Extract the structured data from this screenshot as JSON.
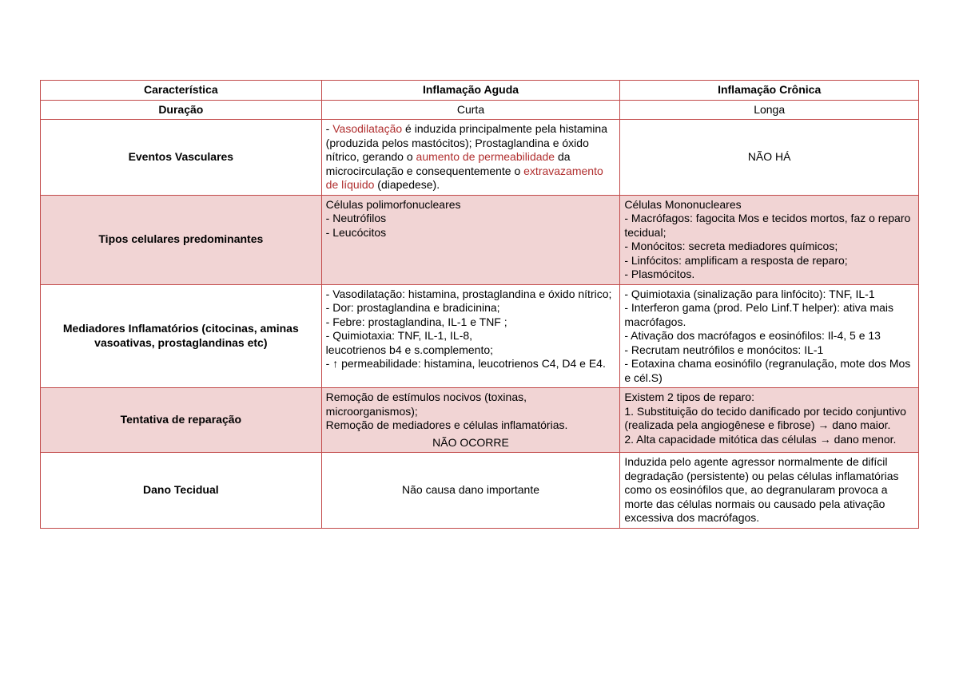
{
  "table": {
    "border_color": "#c24a4a",
    "shade_color": "#f1d4d4",
    "accent_text_color": "#b02e2e",
    "header": {
      "col1": "Característica",
      "col2": "Inflamação Aguda",
      "col3": "Inflamação Crônica"
    },
    "rows": {
      "duracao": {
        "label": "Duração",
        "aguda": "Curta",
        "cronica": "Longa"
      },
      "eventos": {
        "label": "Eventos Vasculares",
        "aguda_p1_a": "- ",
        "aguda_p1_b": "Vasodilatação",
        "aguda_p1_c": " é induzida principalmente pela histamina (produzida pelos mastócitos); Prostaglandina e óxido nítrico, gerando o ",
        "aguda_p1_d": "aumento de permeabilidade",
        "aguda_p1_e": " da microcirculação e consequentemente o ",
        "aguda_p1_f": "extravazamento de líquido",
        "aguda_p1_g": " (diapedese).",
        "cronica": "NÃO HÁ"
      },
      "tipos": {
        "label": "Tipos celulares predominantes",
        "aguda_l1": "Células polimorfonucleares",
        "aguda_l2": "- Neutrófilos",
        "aguda_l3": "- Leucócitos",
        "cronica_l1": "Células Mononucleares",
        "cronica_l2": "- Macrófagos: fagocita Mos e tecidos mortos, faz o reparo tecidual;",
        "cronica_l3": "- Monócitos: secreta mediadores químicos;",
        "cronica_l4": "- Linfócitos: amplificam a resposta de reparo;",
        "cronica_l5": "- Plasmócitos."
      },
      "mediadores": {
        "label": "Mediadores Inflamatórios (citocinas, aminas vasoativas, prostaglandinas etc)",
        "aguda_l1": "- Vasodilatação: histamina, prostaglandina e óxido nítrico;",
        "aguda_l2": "- Dor: prostaglandina e bradicinina;",
        "aguda_l3": "- Febre: prostaglandina, IL-1 e TNF ;",
        "aguda_l4": "- Quimiotaxia: TNF, IL-1, IL-8,",
        "aguda_l5": "leucotrienos b4 e s.complemento;",
        "aguda_l6": "- ↑ permeabilidade: histamina, leucotrienos C4, D4 e E4.",
        "cronica_l1": " - Quimiotaxia (sinalização para linfócito): TNF, IL-1",
        "cronica_l2": "- Interferon gama (prod. Pelo Linf.T helper): ativa mais macrófagos.",
        "cronica_l3": "- Ativação dos macrófagos e eosinófilos: Il-4, 5 e 13",
        "cronica_l4": "- Recrutam neutrófilos e monócitos: IL-1",
        "cronica_l5": "- Eotaxina chama eosinófilo (regranulação, mote dos Mos e cél.S)"
      },
      "reparo": {
        "label": "Tentativa de reparação",
        "aguda_l1": "Remoção de estímulos nocivos (toxinas, microorganismos);",
        "aguda_l2": "Remoção de mediadores e células inflamatórias.",
        "aguda_footer": "NÃO OCORRE",
        "cronica_l1": "Existem 2 tipos de reparo:",
        "cronica_l2": "1. Substituição do tecido danificado por tecido conjuntivo (realizada pela angiogênese e fibrose) → dano maior.",
        "cronica_l3": "2. Alta capacidade mitótica das células → dano menor."
      },
      "dano": {
        "label": "Dano Tecidual",
        "aguda": "Não causa dano importante",
        "cronica": "Induzida pelo agente agressor normalmente de difícil degradação (persistente) ou pelas células inflamatórias como os eosinófilos que, ao degranularam provoca a morte das células normais ou causado pela ativação excessiva dos macrófagos."
      }
    }
  }
}
